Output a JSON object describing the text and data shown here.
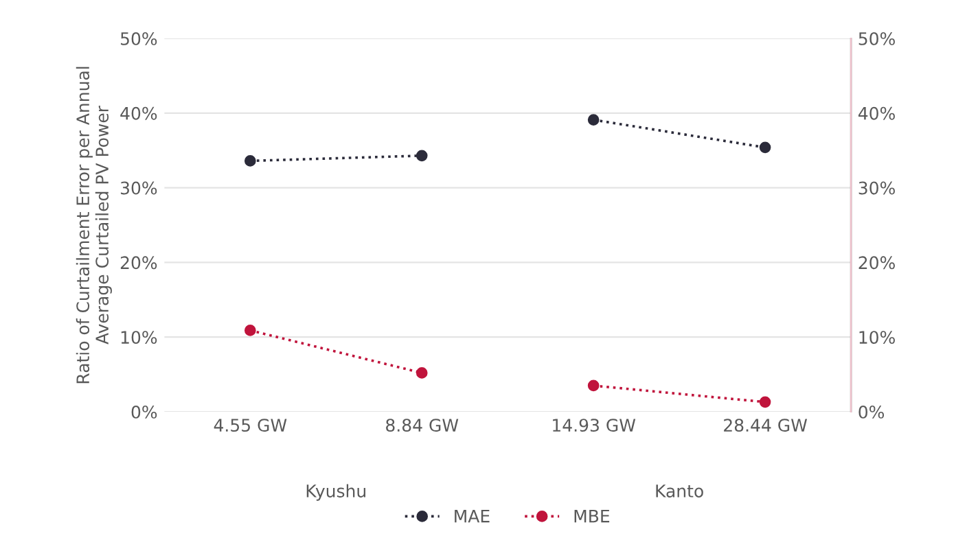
{
  "chart_data": {
    "type": "line",
    "ylabel": "Ratio of Curtailment Error per Annual\nAverage Curtailed PV Power",
    "categories": [
      "4.55 GW",
      "8.84 GW",
      "14.93 GW",
      "28.44 GW"
    ],
    "series": [
      {
        "name": "MAE",
        "color": "#2b2b3a",
        "values": [
          33.6,
          34.3,
          null,
          null
        ]
      },
      {
        "name": "MBE",
        "color": "#c0143c",
        "values": [
          10.9,
          5.2,
          null,
          null
        ]
      },
      {
        "color": "#2b2b3a",
        "values": [
          null,
          null,
          39.1,
          35.4
        ]
      },
      {
        "color": "#c0143c",
        "values": [
          null,
          null,
          3.5,
          1.3
        ]
      }
    ],
    "annotations": [
      "Kyushu",
      "Kanto"
    ],
    "ylim": [
      0,
      50
    ],
    "yticks": [
      {
        "value": 0,
        "label": "0%"
      },
      {
        "value": 10,
        "label": "10%"
      },
      {
        "value": 20,
        "label": "20%"
      },
      {
        "value": 30,
        "label": "30%"
      },
      {
        "value": 40,
        "label": "40%"
      },
      {
        "value": 50,
        "label": "50%"
      }
    ],
    "y2lim": [
      0,
      50
    ],
    "y2ticks": [
      {
        "value": 0,
        "label": "0%"
      },
      {
        "value": 10,
        "label": "10%"
      },
      {
        "value": 20,
        "label": "20%"
      },
      {
        "value": 30,
        "label": "30%"
      },
      {
        "value": 40,
        "label": "40%"
      },
      {
        "value": 50,
        "label": "50%"
      }
    ],
    "grid": "y",
    "legend": "bottom",
    "marker": "circle",
    "line_style": "dotted"
  }
}
